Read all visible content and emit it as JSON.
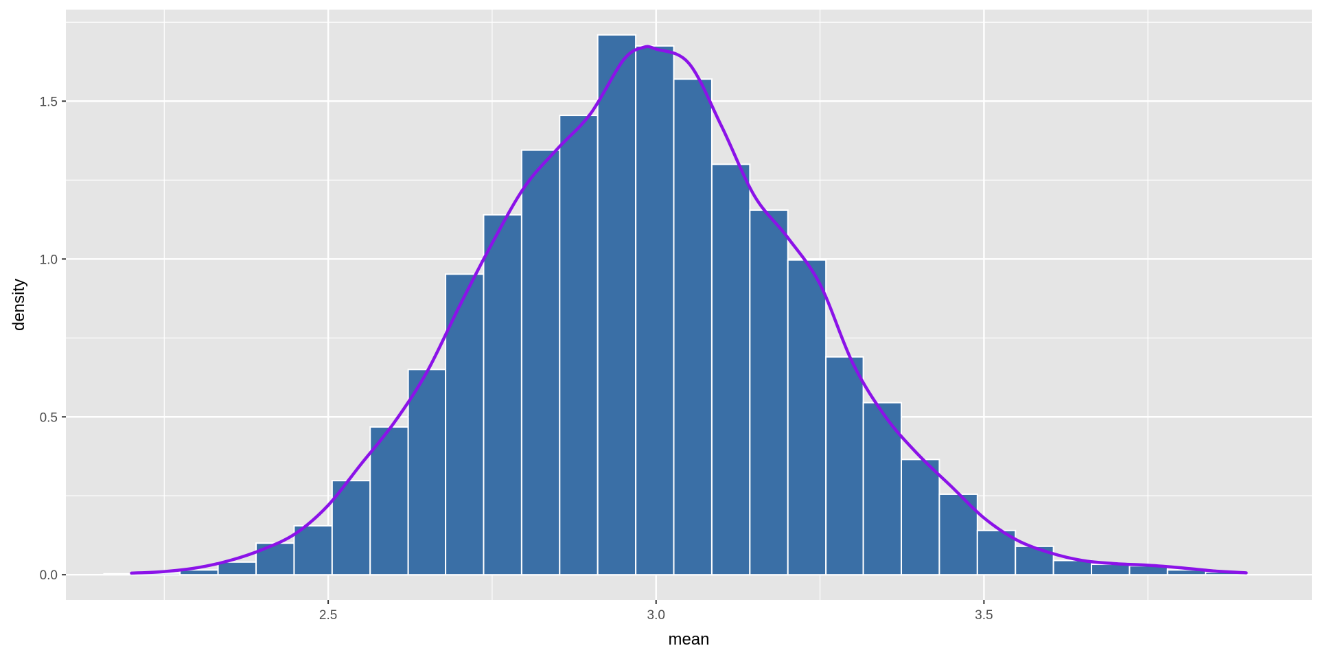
{
  "chart_data": {
    "type": "bar",
    "title": "",
    "xlabel": "mean",
    "ylabel": "density",
    "xlim": [
      2.1,
      4.0
    ],
    "ylim": [
      -0.08,
      1.79
    ],
    "x_ticks": [
      2.5,
      3.0,
      3.5
    ],
    "x_tick_labels": [
      "2.5",
      "3.0",
      "3.5"
    ],
    "y_ticks": [
      0.0,
      0.5,
      1.0,
      1.5
    ],
    "y_tick_labels": [
      "0.0",
      "0.5",
      "1.0",
      "1.5"
    ],
    "grid": true,
    "bin_width": 0.0579,
    "bins": [
      {
        "x0": 2.158,
        "x1": 2.216,
        "density": 0.003
      },
      {
        "x0": 2.216,
        "x1": 2.274,
        "density": 0.005
      },
      {
        "x0": 2.274,
        "x1": 2.332,
        "density": 0.015
      },
      {
        "x0": 2.332,
        "x1": 2.39,
        "density": 0.04
      },
      {
        "x0": 2.39,
        "x1": 2.448,
        "density": 0.1
      },
      {
        "x0": 2.448,
        "x1": 2.506,
        "density": 0.155
      },
      {
        "x0": 2.506,
        "x1": 2.564,
        "density": 0.298
      },
      {
        "x0": 2.564,
        "x1": 2.622,
        "density": 0.468
      },
      {
        "x0": 2.622,
        "x1": 2.679,
        "density": 0.65
      },
      {
        "x0": 2.679,
        "x1": 2.737,
        "density": 0.952
      },
      {
        "x0": 2.737,
        "x1": 2.795,
        "density": 1.14
      },
      {
        "x0": 2.795,
        "x1": 2.853,
        "density": 1.345
      },
      {
        "x0": 2.853,
        "x1": 2.911,
        "density": 1.455
      },
      {
        "x0": 2.911,
        "x1": 2.969,
        "density": 1.71
      },
      {
        "x0": 2.969,
        "x1": 3.027,
        "density": 1.675
      },
      {
        "x0": 3.027,
        "x1": 3.085,
        "density": 1.57
      },
      {
        "x0": 3.085,
        "x1": 3.143,
        "density": 1.3
      },
      {
        "x0": 3.143,
        "x1": 3.201,
        "density": 1.155
      },
      {
        "x0": 3.201,
        "x1": 3.259,
        "density": 0.997
      },
      {
        "x0": 3.259,
        "x1": 3.316,
        "density": 0.69
      },
      {
        "x0": 3.316,
        "x1": 3.374,
        "density": 0.545
      },
      {
        "x0": 3.374,
        "x1": 3.432,
        "density": 0.365
      },
      {
        "x0": 3.432,
        "x1": 3.49,
        "density": 0.255
      },
      {
        "x0": 3.49,
        "x1": 3.548,
        "density": 0.14
      },
      {
        "x0": 3.548,
        "x1": 3.606,
        "density": 0.09
      },
      {
        "x0": 3.606,
        "x1": 3.664,
        "density": 0.045
      },
      {
        "x0": 3.664,
        "x1": 3.722,
        "density": 0.033
      },
      {
        "x0": 3.722,
        "x1": 3.78,
        "density": 0.028
      },
      {
        "x0": 3.78,
        "x1": 3.838,
        "density": 0.015
      },
      {
        "x0": 3.838,
        "x1": 3.896,
        "density": 0.008
      }
    ],
    "density_curve": {
      "color": "#8b12e8",
      "points": [
        [
          2.2,
          0.005
        ],
        [
          2.25,
          0.01
        ],
        [
          2.3,
          0.022
        ],
        [
          2.35,
          0.045
        ],
        [
          2.4,
          0.08
        ],
        [
          2.45,
          0.13
        ],
        [
          2.5,
          0.22
        ],
        [
          2.55,
          0.35
        ],
        [
          2.6,
          0.48
        ],
        [
          2.65,
          0.64
        ],
        [
          2.7,
          0.85
        ],
        [
          2.75,
          1.05
        ],
        [
          2.8,
          1.23
        ],
        [
          2.85,
          1.35
        ],
        [
          2.9,
          1.46
        ],
        [
          2.95,
          1.63
        ],
        [
          2.98,
          1.67
        ],
        [
          3.0,
          1.665
        ],
        [
          3.05,
          1.62
        ],
        [
          3.1,
          1.42
        ],
        [
          3.15,
          1.2
        ],
        [
          3.2,
          1.07
        ],
        [
          3.25,
          0.92
        ],
        [
          3.3,
          0.67
        ],
        [
          3.35,
          0.5
        ],
        [
          3.4,
          0.38
        ],
        [
          3.45,
          0.28
        ],
        [
          3.5,
          0.18
        ],
        [
          3.55,
          0.11
        ],
        [
          3.6,
          0.07
        ],
        [
          3.65,
          0.045
        ],
        [
          3.7,
          0.035
        ],
        [
          3.75,
          0.03
        ],
        [
          3.8,
          0.022
        ],
        [
          3.85,
          0.012
        ],
        [
          3.9,
          0.006
        ]
      ]
    },
    "colors": {
      "bar_fill": "#3a6fa6",
      "bar_edge": "#ffffff",
      "panel_bg": "#e5e5e5",
      "grid_major": "#ffffff",
      "curve": "#8b12e8"
    }
  }
}
